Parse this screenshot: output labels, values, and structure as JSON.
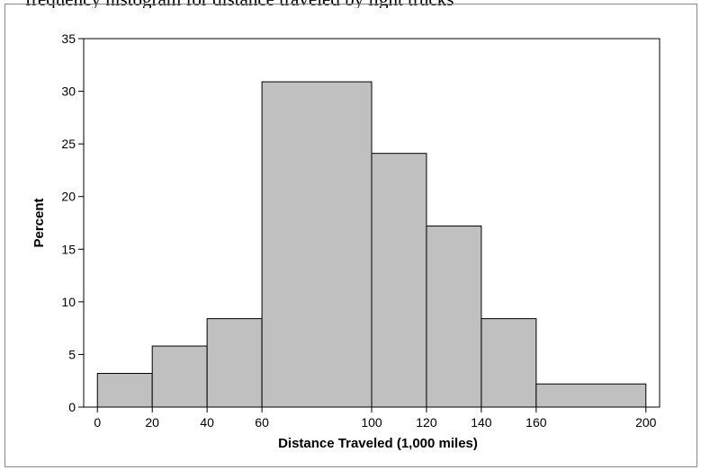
{
  "caption": "frequency histogram for distance traveled by light trucks",
  "colors": {
    "bar_fill": "#c0c0c0",
    "bar_stroke": "#000000",
    "axis": "#000000"
  },
  "chart_data": {
    "type": "bar",
    "histogram": true,
    "bins": [
      {
        "start": 0,
        "end": 20,
        "value": 3.2
      },
      {
        "start": 20,
        "end": 40,
        "value": 5.8
      },
      {
        "start": 40,
        "end": 60,
        "value": 8.4
      },
      {
        "start": 60,
        "end": 100,
        "value": 30.9
      },
      {
        "start": 100,
        "end": 120,
        "value": 24.1
      },
      {
        "start": 120,
        "end": 140,
        "value": 17.2
      },
      {
        "start": 140,
        "end": 160,
        "value": 8.4
      },
      {
        "start": 160,
        "end": 200,
        "value": 2.2
      }
    ],
    "xticks": [
      0,
      20,
      40,
      60,
      100,
      120,
      140,
      160,
      200
    ],
    "yticks": [
      0,
      5,
      10,
      15,
      20,
      25,
      30,
      35
    ],
    "xlim": [
      -5,
      205
    ],
    "ylim": [
      0,
      35
    ],
    "xlabel": "Distance Traveled (1,000 miles)",
    "ylabel": "Percent",
    "grid": false
  }
}
